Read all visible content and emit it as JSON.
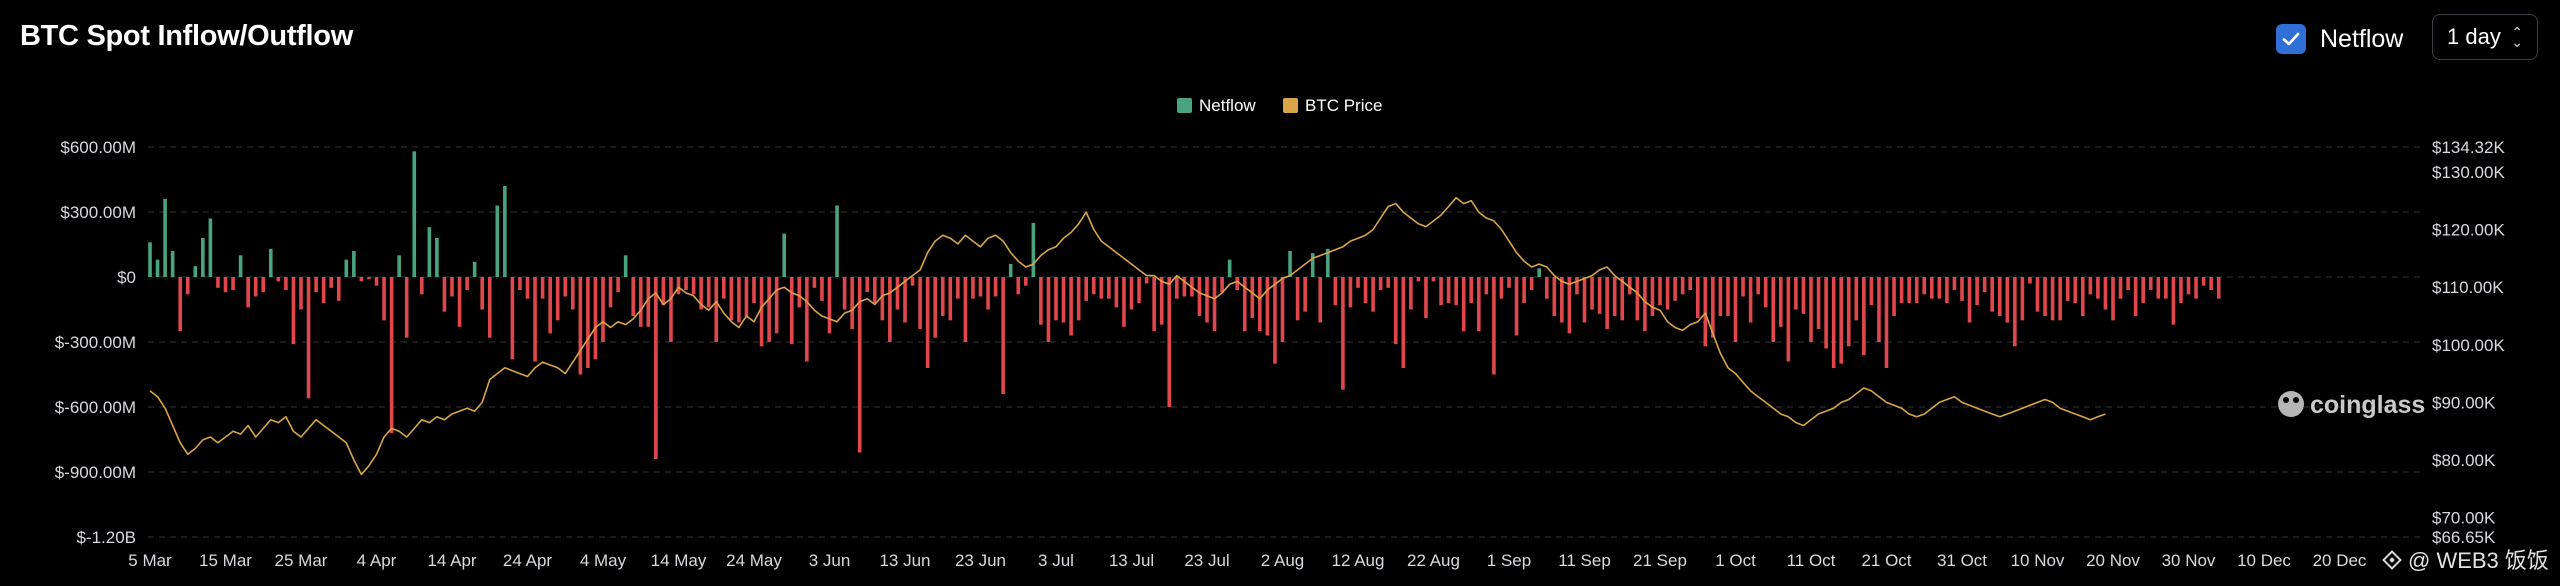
{
  "header": {
    "title": "BTC Spot Inflow/Outflow",
    "netflow_toggle_label": "Netflow",
    "period_value": "1 day"
  },
  "colors": {
    "inflow": "#4aa37f",
    "outflow": "#e0474c",
    "price": "#d9a548",
    "grid": "#2a2b2f",
    "checkbox": "#2f6fd6"
  },
  "watermark": {
    "brand": "coinglass",
    "source": "@ WEB3 饭饭"
  },
  "chart_data": {
    "type": "bar",
    "title": "BTC Spot Inflow/Outflow",
    "legend": [
      "Netflow",
      "BTC Price"
    ],
    "legend_position": "top-center",
    "x_tick_labels": [
      "5 Mar",
      "15 Mar",
      "25 Mar",
      "4 Apr",
      "14 Apr",
      "24 Apr",
      "4 May",
      "14 May",
      "24 May",
      "3 Jun",
      "13 Jun",
      "23 Jun",
      "3 Jul",
      "13 Jul",
      "23 Jul",
      "2 Aug",
      "12 Aug",
      "22 Aug",
      "1 Sep",
      "11 Sep",
      "21 Sep",
      "1 Oct",
      "11 Oct",
      "21 Oct",
      "31 Oct",
      "10 Nov",
      "20 Nov",
      "30 Nov",
      "10 Dec",
      "20 Dec"
    ],
    "y_left": {
      "label": "Netflow",
      "ylim": [
        -1200,
        600
      ],
      "unit": "USD M",
      "tick_values": [
        600,
        300,
        0,
        -300,
        -600,
        -900,
        -1200
      ],
      "tick_labels": [
        "$600.00M",
        "$300.00M",
        "$0",
        "$-300.00M",
        "$-600.00M",
        "$-900.00M",
        "$-1.20B"
      ]
    },
    "y_right": {
      "label": "BTC Price",
      "ylim": [
        66650,
        134320
      ],
      "unit": "USD",
      "tick_values": [
        134320,
        130000,
        120000,
        110000,
        100000,
        90000,
        80000,
        70000,
        66650
      ],
      "tick_labels": [
        "$134.32K",
        "$130.00K",
        "$120.00K",
        "$110.00K",
        "$100.00K",
        "$90.00K",
        "$80.00K",
        "$70.00K",
        "$66.65K"
      ]
    },
    "x_start_index": 0,
    "tick_interval_days": 10,
    "series": [
      {
        "name": "Netflow",
        "unit": "USD M",
        "values": [
          160,
          80,
          360,
          120,
          -250,
          -80,
          50,
          180,
          270,
          -50,
          -70,
          -60,
          100,
          -140,
          -90,
          -70,
          130,
          -20,
          -60,
          -310,
          -150,
          -560,
          -70,
          -120,
          -50,
          -110,
          80,
          120,
          -20,
          -10,
          -40,
          -200,
          -720,
          100,
          -280,
          580,
          -80,
          230,
          180,
          -160,
          -90,
          -230,
          -60,
          70,
          -150,
          -280,
          330,
          420,
          -380,
          -60,
          -100,
          -390,
          -100,
          -260,
          -200,
          -90,
          -150,
          -450,
          -420,
          -380,
          -300,
          -140,
          -70,
          100,
          -180,
          -230,
          -230,
          -840,
          -130,
          -300,
          -80,
          -60,
          -80,
          -150,
          -140,
          -300,
          -100,
          -200,
          -210,
          -180,
          -120,
          -320,
          -300,
          -260,
          200,
          -310,
          -140,
          -390,
          -50,
          -110,
          -260,
          330,
          -150,
          -240,
          -810,
          -70,
          -120,
          -200,
          -300,
          -150,
          -210,
          -40,
          -240,
          -420,
          -280,
          -180,
          -200,
          -100,
          -300,
          -100,
          -90,
          -150,
          -90,
          -540,
          60,
          -80,
          -40,
          250,
          -220,
          -300,
          -200,
          -210,
          -270,
          -200,
          -110,
          -80,
          -100,
          -100,
          -140,
          -230,
          -150,
          -120,
          -30,
          -250,
          -220,
          -600,
          -100,
          -90,
          -90,
          -180,
          -210,
          -250,
          -70,
          80,
          -60,
          -250,
          -190,
          -250,
          -270,
          -400,
          -300,
          120,
          -200,
          -160,
          110,
          -210,
          130,
          -130,
          -520,
          -140,
          -50,
          -120,
          -160,
          -60,
          -50,
          -310,
          -420,
          -150,
          -20,
          -190,
          -20,
          -130,
          -120,
          -130,
          -250,
          -120,
          -250,
          -80,
          -450,
          -100,
          -50,
          -270,
          -120,
          -60,
          40,
          -100,
          -180,
          -210,
          -260,
          -80,
          -210,
          -150,
          -170,
          -240,
          -180,
          -200,
          -80,
          -200,
          -250,
          -180,
          -130,
          -150,
          -110,
          -80,
          -60,
          -190,
          -320,
          -280,
          -180,
          -180,
          -300,
          -90,
          -210,
          -80,
          -140,
          -300,
          -230,
          -390,
          -150,
          -170,
          -300,
          -240,
          -330,
          -420,
          -400,
          -320,
          -200,
          -360,
          -130,
          -300,
          -420,
          -180,
          -120,
          -120,
          -120,
          -80,
          -100,
          -100,
          -120,
          -60,
          -110,
          -210,
          -130,
          -70,
          -160,
          -180,
          -210,
          -320,
          -200,
          -30,
          -160,
          -180,
          -200,
          -200,
          -110,
          -120,
          -180,
          -80,
          -100,
          -150,
          -200,
          -100,
          -60,
          -180,
          -120,
          -60,
          -100,
          -100,
          -220,
          -120,
          -80,
          -100,
          -40,
          -60,
          -100
        ],
        "values_note": "approximate daily netflow, one per day; positives in green, negatives in red"
      },
      {
        "name": "BTC Price",
        "unit": "USD",
        "values": [
          92000,
          91000,
          89000,
          86000,
          83000,
          81000,
          82000,
          83500,
          84000,
          83000,
          84000,
          85000,
          84500,
          86000,
          84000,
          85500,
          87000,
          86500,
          87500,
          85000,
          84000,
          85500,
          87000,
          86000,
          85000,
          84000,
          83000,
          80000,
          77500,
          79000,
          81000,
          84000,
          85500,
          85000,
          84000,
          85500,
          87000,
          86500,
          87500,
          87000,
          88000,
          88500,
          89000,
          88500,
          90000,
          94000,
          95000,
          96000,
          95500,
          95000,
          94500,
          96000,
          97000,
          96500,
          96000,
          95000,
          97000,
          99000,
          101000,
          103000,
          104000,
          103000,
          104000,
          103500,
          104500,
          106000,
          108000,
          109000,
          107000,
          108000,
          110000,
          109000,
          108500,
          107000,
          106000,
          107500,
          105500,
          104000,
          103000,
          105000,
          104000,
          106500,
          108000,
          109500,
          110000,
          109000,
          108500,
          107500,
          106000,
          105000,
          104500,
          104000,
          105500,
          106000,
          107500,
          108000,
          107000,
          108500,
          109000,
          110000,
          111000,
          112000,
          113000,
          116000,
          118000,
          119000,
          118500,
          117500,
          119000,
          118000,
          117000,
          118500,
          119000,
          118000,
          116000,
          114500,
          113500,
          114000,
          115500,
          116500,
          117000,
          118500,
          119500,
          121000,
          123000,
          120000,
          118000,
          117000,
          116000,
          115000,
          114000,
          113000,
          112000,
          112000,
          111000,
          110500,
          112000,
          111000,
          110000,
          109000,
          108500,
          108000,
          109000,
          110500,
          111000,
          110000,
          109000,
          108000,
          109500,
          110500,
          111500,
          112000,
          113000,
          114000,
          115000,
          115500,
          116000,
          116500,
          117000,
          118000,
          118500,
          119000,
          120000,
          122000,
          124000,
          124500,
          123000,
          122000,
          121000,
          120500,
          121500,
          122500,
          124000,
          125500,
          124500,
          125000,
          123000,
          122000,
          121500,
          120000,
          118000,
          116000,
          114500,
          113500,
          114000,
          113500,
          112000,
          111000,
          110500,
          111000,
          111500,
          112000,
          113000,
          113500,
          112000,
          111000,
          110000,
          109000,
          107500,
          106500,
          106000,
          104000,
          103000,
          102500,
          103500,
          104000,
          105500,
          102000,
          98500,
          96000,
          95000,
          93500,
          92000,
          91000,
          90000,
          89000,
          88000,
          87500,
          86500,
          86000,
          87000,
          88000,
          88500,
          89000,
          90000,
          90500,
          91500,
          92500,
          92000,
          91000,
          90000,
          89500,
          89000,
          88000,
          87500,
          88000,
          89000,
          90000,
          90500,
          91000,
          90000,
          89500,
          89000,
          88500,
          88000,
          87500,
          88000,
          88500,
          89000,
          89500,
          90000,
          90500,
          90000,
          89000,
          88500,
          88000,
          87500,
          87000,
          87500,
          88000
        ],
        "values_note": "approximate BTC close price, one per day"
      }
    ]
  }
}
